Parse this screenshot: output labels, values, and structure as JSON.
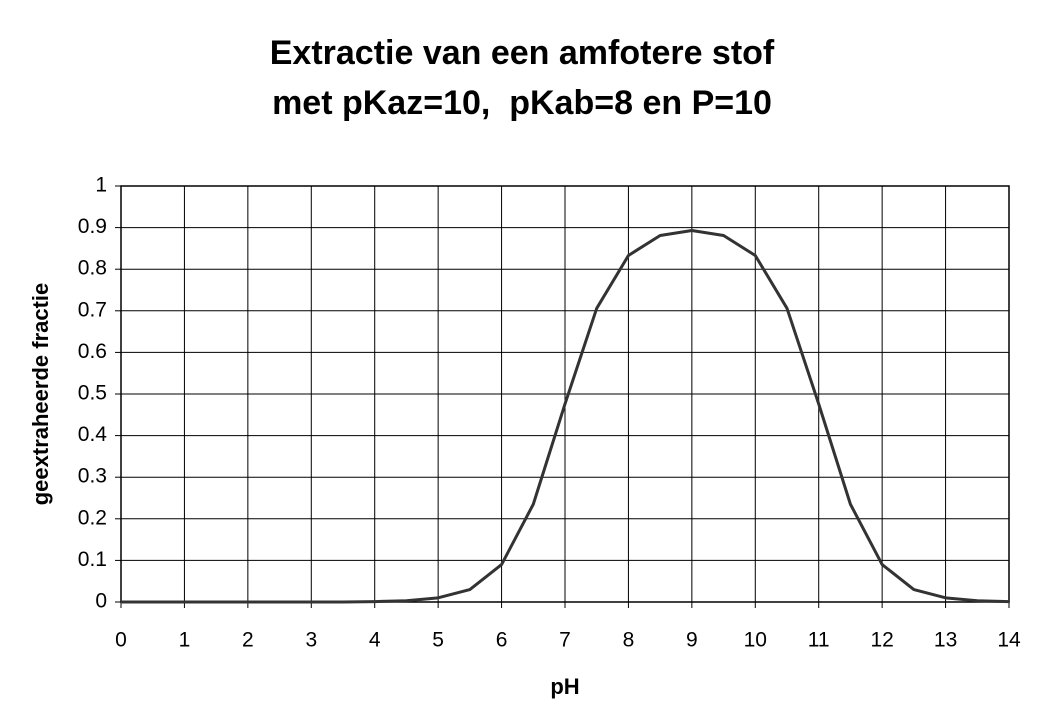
{
  "chart_data": {
    "type": "line",
    "title": [
      "Extractie van een amfotere stof",
      "met pKaz=10,  pKab=8 en P=10"
    ],
    "x_label": "pH",
    "y_label": "geextraheerde fractie",
    "x": [
      0,
      0.5,
      1,
      1.5,
      2,
      2.5,
      3,
      3.5,
      4,
      4.5,
      5,
      5.5,
      6,
      6.5,
      7,
      7.5,
      8,
      8.5,
      9,
      9.5,
      10,
      10.5,
      11,
      11.5,
      12,
      12.5,
      13,
      13.5,
      14
    ],
    "series": [
      {
        "name": "geextraheerde fractie",
        "color": "#333333",
        "values": [
          0,
          0,
          0,
          0,
          0,
          0,
          0,
          0,
          0.001,
          0.003,
          0.01,
          0.03,
          0.09,
          0.235,
          0.476,
          0.706,
          0.833,
          0.881,
          0.893,
          0.881,
          0.833,
          0.706,
          0.476,
          0.235,
          0.09,
          0.03,
          0.01,
          0.003,
          0.001
        ]
      }
    ],
    "xlim": [
      0,
      14
    ],
    "xticks": [
      0,
      1,
      2,
      3,
      4,
      5,
      6,
      7,
      8,
      9,
      10,
      11,
      12,
      13,
      14
    ],
    "ylim": [
      0,
      1
    ],
    "yticks": [
      0,
      0.1,
      0.2,
      0.3,
      0.4,
      0.5,
      0.6,
      0.7,
      0.8,
      0.9,
      1
    ],
    "grid": true
  }
}
